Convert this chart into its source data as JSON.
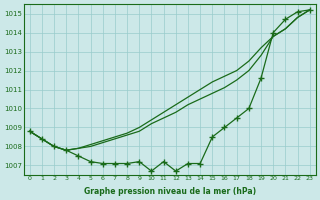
{
  "x": [
    0,
    1,
    2,
    3,
    4,
    5,
    6,
    7,
    8,
    9,
    10,
    11,
    12,
    13,
    14,
    15,
    16,
    17,
    18,
    19,
    20,
    21,
    22,
    23
  ],
  "series1": [
    1008.8,
    1008.4,
    1008.0,
    1007.8,
    1007.5,
    1007.2,
    1007.1,
    1007.1,
    1007.1,
    1007.2,
    1006.7,
    1007.2,
    1006.7,
    1007.1,
    1007.1,
    1008.5,
    1009.0,
    1009.5,
    1010.0,
    1011.6,
    1014.0,
    1014.7,
    1015.1,
    1015.2
  ],
  "series2": [
    1008.8,
    1008.4,
    1008.0,
    1007.8,
    1007.9,
    1008.0,
    1008.2,
    1008.4,
    1008.6,
    1008.8,
    1009.2,
    1009.5,
    1009.8,
    1010.2,
    1010.5,
    1010.8,
    1011.1,
    1011.5,
    1012.0,
    1012.8,
    1013.8,
    1014.2,
    1014.8,
    1015.2
  ],
  "series3": [
    1008.8,
    1008.4,
    1008.0,
    1007.8,
    1007.9,
    1008.1,
    1008.3,
    1008.5,
    1008.7,
    1009.0,
    1009.4,
    1009.8,
    1010.2,
    1010.6,
    1011.0,
    1011.4,
    1011.7,
    1012.0,
    1012.5,
    1013.2,
    1013.8,
    1014.2,
    1014.8,
    1015.2
  ],
  "ylim": [
    1006.5,
    1015.5
  ],
  "yticks": [
    1007,
    1008,
    1009,
    1010,
    1011,
    1012,
    1013,
    1014,
    1015
  ],
  "xticks": [
    0,
    1,
    2,
    3,
    4,
    5,
    6,
    7,
    8,
    9,
    10,
    11,
    12,
    13,
    14,
    15,
    16,
    17,
    18,
    19,
    20,
    21,
    22,
    23
  ],
  "line_color": "#1a6b1a",
  "bg_color": "#cce8e8",
  "grid_color": "#99cccc",
  "xlabel": "Graphe pression niveau de la mer (hPa)",
  "marker": "+",
  "marker_size": 4.0,
  "line_width": 0.9
}
